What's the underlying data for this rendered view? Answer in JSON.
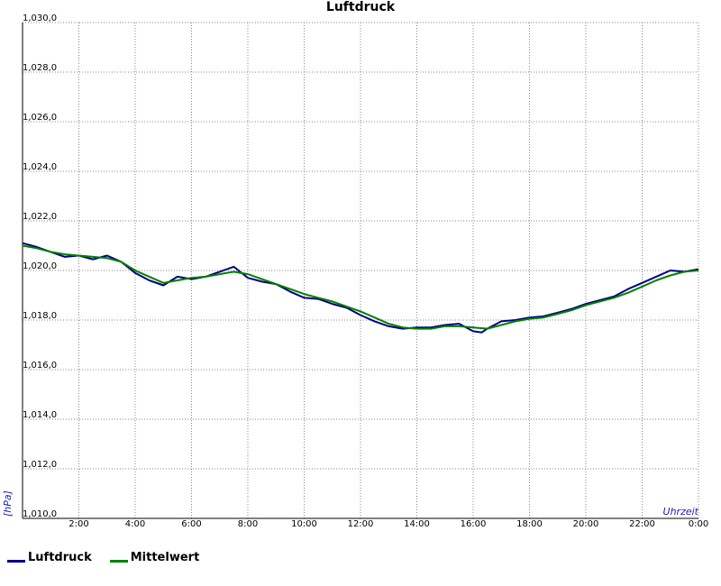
{
  "chart_data": {
    "type": "line",
    "title": "Luftdruck",
    "xlabel": "Uhrzeit",
    "ylabel": "[hPa]",
    "xlim": [
      0,
      24
    ],
    "ylim": [
      1010,
      1030
    ],
    "y_ticks": [
      "1,010,0",
      "1,012,0",
      "1,014,0",
      "1,016,0",
      "1,018,0",
      "1,020,0",
      "1,022,0",
      "1,024,0",
      "1,026,0",
      "1,028,0",
      "1,030,0"
    ],
    "x_ticks": [
      "2:00",
      "4:00",
      "6:00",
      "8:00",
      "10:00",
      "12:00",
      "14:00",
      "16:00",
      "18:00",
      "20:00",
      "22:00",
      "0:00"
    ],
    "grid": true,
    "legend_position": "bottom-left",
    "series": [
      {
        "name": "Luftdruck",
        "color": "#000080",
        "x": [
          0,
          0.5,
          1,
          1.5,
          2,
          2.5,
          3,
          3.5,
          4,
          4.5,
          5,
          5.5,
          6,
          6.5,
          7,
          7.5,
          8,
          8.5,
          9,
          9.5,
          10,
          10.5,
          11,
          11.5,
          12,
          12.5,
          13,
          13.5,
          14,
          14.5,
          15,
          15.5,
          16,
          16.3,
          16.5,
          17,
          17.5,
          18,
          18.5,
          19,
          19.5,
          20,
          20.5,
          21,
          21.5,
          22,
          22.5,
          23,
          23.5,
          24
        ],
        "y": [
          1021.1,
          1020.95,
          1020.75,
          1020.55,
          1020.6,
          1020.45,
          1020.6,
          1020.35,
          1019.9,
          1019.6,
          1019.4,
          1019.75,
          1019.65,
          1019.75,
          1019.95,
          1020.15,
          1019.7,
          1019.55,
          1019.45,
          1019.15,
          1018.9,
          1018.85,
          1018.65,
          1018.5,
          1018.2,
          1017.95,
          1017.75,
          1017.65,
          1017.7,
          1017.7,
          1017.8,
          1017.85,
          1017.55,
          1017.5,
          1017.65,
          1017.95,
          1018.0,
          1018.1,
          1018.15,
          1018.3,
          1018.45,
          1018.65,
          1018.8,
          1018.95,
          1019.25,
          1019.5,
          1019.75,
          1020.0,
          1019.95,
          1020.05
        ]
      },
      {
        "name": "Mittelwert",
        "color": "#008000",
        "x": [
          0,
          0.5,
          1,
          1.5,
          2,
          2.5,
          3,
          3.5,
          4,
          4.5,
          5,
          5.5,
          6,
          6.5,
          7,
          7.5,
          8,
          8.5,
          9,
          9.5,
          10,
          10.5,
          11,
          11.5,
          12,
          12.5,
          13,
          13.5,
          14,
          14.5,
          15,
          15.5,
          16,
          16.5,
          17,
          17.5,
          18,
          18.5,
          19,
          19.5,
          20,
          20.5,
          21,
          21.5,
          22,
          22.5,
          23,
          23.5,
          24
        ],
        "y": [
          1021.0,
          1020.9,
          1020.75,
          1020.65,
          1020.6,
          1020.55,
          1020.5,
          1020.35,
          1020.0,
          1019.75,
          1019.5,
          1019.6,
          1019.7,
          1019.75,
          1019.85,
          1019.95,
          1019.85,
          1019.65,
          1019.45,
          1019.25,
          1019.05,
          1018.9,
          1018.75,
          1018.55,
          1018.35,
          1018.1,
          1017.85,
          1017.7,
          1017.65,
          1017.65,
          1017.75,
          1017.75,
          1017.7,
          1017.65,
          1017.8,
          1017.95,
          1018.05,
          1018.1,
          1018.25,
          1018.4,
          1018.6,
          1018.75,
          1018.9,
          1019.1,
          1019.35,
          1019.6,
          1019.8,
          1019.95,
          1020.0
        ]
      }
    ]
  }
}
